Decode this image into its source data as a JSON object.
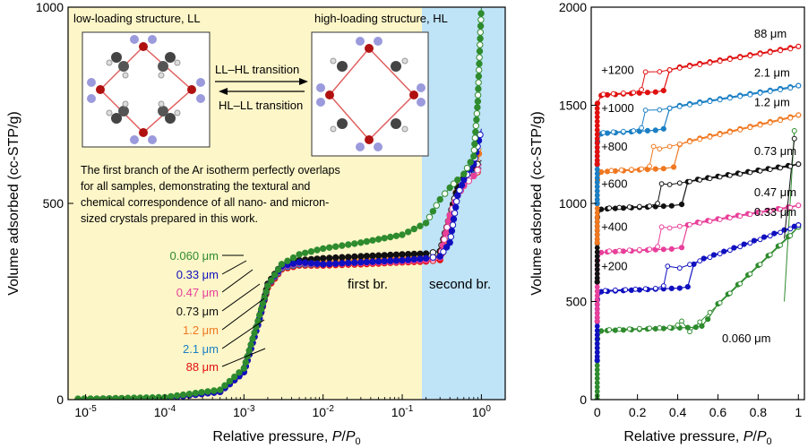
{
  "chart_data": [
    {
      "type": "scatter",
      "xscale": "log",
      "xlim": [
        6e-06,
        2
      ],
      "ylim": [
        0,
        1000
      ],
      "xlabel": "Relative pressure, P/P0",
      "ylabel": "Volume adsorbed (cc-STP/g)",
      "x_ticks": [
        1e-05,
        0.0001,
        0.001,
        0.01,
        0.1,
        1
      ],
      "x_tick_labels": [
        "10^-5",
        "10^-4",
        "10^-3",
        "10^-2",
        "10^-1",
        "10^0"
      ],
      "y_ticks": [
        0,
        500,
        1000
      ],
      "y_tick_labels": [
        "0",
        "500",
        "1000"
      ],
      "regions": [
        {
          "label": "first br.",
          "x_range": [
            6e-06,
            0.18
          ],
          "color": "#fdf6c8"
        },
        {
          "label": "second br.",
          "x_range": [
            0.18,
            2
          ],
          "color": "#bfe3f7"
        }
      ],
      "annotations": {
        "ll_label": "low-loading structure, LL",
        "hl_label": "high-loading structure, HL",
        "arrow_forward": "LL–HL transition",
        "arrow_back": "HL–LL transition",
        "note": [
          "The first branch of the Ar isotherm perfectly overlaps",
          "for all samples, demonstrating the textural and",
          "chemical correspondence of all nano- and micron-",
          "sized crystals prepared in this work."
        ]
      },
      "series": [
        {
          "name": "0.060 μm",
          "color": "#2e8b2e",
          "x": [
            8e-06,
            2e-05,
            0.0001,
            0.0005,
            0.001,
            0.0015,
            0.002,
            0.003,
            0.005,
            0.01,
            0.03,
            0.1,
            0.2,
            0.3,
            0.4,
            0.5,
            0.6,
            0.8,
            0.9,
            1.0
          ],
          "y": [
            2,
            3,
            6,
            25,
            80,
            200,
            290,
            345,
            370,
            385,
            400,
            420,
            450,
            510,
            540,
            560,
            575,
            620,
            760,
            1000
          ]
        },
        {
          "name": "0.33 μm",
          "color": "#1010c0",
          "x": [
            8e-06,
            0.0001,
            0.0005,
            0.001,
            0.0015,
            0.002,
            0.003,
            0.005,
            0.01,
            0.03,
            0.1,
            0.2,
            0.3,
            0.4,
            0.5,
            0.6,
            0.8,
            1.0
          ],
          "y": [
            1,
            4,
            20,
            70,
            190,
            290,
            340,
            350,
            345,
            350,
            355,
            360,
            365,
            400,
            520,
            560,
            600,
            690
          ]
        },
        {
          "name": "0.47 μm",
          "color": "#e8409a",
          "x": [
            8e-06,
            0.0001,
            0.0005,
            0.001,
            0.0015,
            0.002,
            0.003,
            0.005,
            0.01,
            0.03,
            0.1,
            0.2,
            0.3,
            0.4,
            0.5,
            0.6,
            0.8,
            1.0
          ],
          "y": [
            1,
            4,
            20,
            70,
            190,
            290,
            338,
            348,
            345,
            348,
            352,
            356,
            362,
            470,
            520,
            545,
            570,
            600
          ]
        },
        {
          "name": "0.73 μm",
          "color": "#111111",
          "x": [
            8e-06,
            0.0001,
            0.0005,
            0.001,
            0.0015,
            0.002,
            0.003,
            0.005,
            0.01,
            0.03,
            0.1,
            0.2,
            0.3,
            0.4,
            0.5,
            0.6,
            0.8,
            1.0
          ],
          "y": [
            1,
            4,
            20,
            70,
            190,
            295,
            345,
            355,
            360,
            365,
            370,
            372,
            378,
            470,
            540,
            565,
            590,
            610
          ]
        },
        {
          "name": "1.2 μm",
          "color": "#f07820",
          "x": [
            8e-06,
            0.0001,
            0.0005,
            0.001,
            0.0015,
            0.002,
            0.003,
            0.005,
            0.01,
            0.03,
            0.1,
            0.2,
            0.3,
            0.4,
            0.5,
            0.6,
            0.8,
            1.0
          ],
          "y": [
            1,
            4,
            20,
            70,
            190,
            290,
            340,
            350,
            350,
            355,
            360,
            362,
            368,
            460,
            545,
            570,
            600,
            640
          ]
        },
        {
          "name": "2.1 μm",
          "color": "#1a7fc4",
          "x": [
            8e-06,
            0.0001,
            0.0005,
            0.001,
            0.0015,
            0.002,
            0.003,
            0.005,
            0.01,
            0.03,
            0.1,
            0.2,
            0.3,
            0.4,
            0.5,
            0.6,
            0.8,
            1.0
          ],
          "y": [
            1,
            4,
            20,
            70,
            190,
            290,
            335,
            345,
            345,
            350,
            355,
            358,
            363,
            455,
            520,
            550,
            580,
            600
          ]
        },
        {
          "name": "88 μm",
          "color": "#e01010",
          "x": [
            8e-06,
            0.0001,
            0.0005,
            0.001,
            0.0015,
            0.002,
            0.003,
            0.005,
            0.01,
            0.03,
            0.1,
            0.2,
            0.3,
            0.4,
            0.5,
            0.6,
            0.8,
            1.0
          ],
          "y": [
            1,
            4,
            20,
            70,
            190,
            285,
            332,
            342,
            342,
            345,
            350,
            352,
            356,
            450,
            520,
            545,
            570,
            590
          ]
        }
      ]
    },
    {
      "type": "line",
      "xlim": [
        -0.03,
        1.03
      ],
      "ylim": [
        0,
        2000
      ],
      "xlabel": "Relative pressure, P/P0",
      "ylabel": "Volume adsorbed (cc-STP/g)",
      "x_ticks": [
        0,
        0.2,
        0.4,
        0.6,
        0.8,
        1
      ],
      "x_tick_labels": [
        "0",
        "0.2",
        "0.4",
        "0.6",
        "0.8",
        "1"
      ],
      "y_ticks": [
        0,
        500,
        1000,
        1500,
        2000
      ],
      "y_tick_labels": [
        "0",
        "500",
        "1000",
        "1500",
        "2000"
      ],
      "series": [
        {
          "name": "0.060 μm",
          "offset_label": "",
          "color": "#2e8b2e",
          "offset": 0,
          "step": 0.52,
          "step_height": 60,
          "base": 350,
          "end": 880,
          "steep": 1370
        },
        {
          "name": "0.33 μm",
          "offset_label": "+200",
          "color": "#1010c0",
          "offset": 200,
          "step": 0.45,
          "step_height": 140,
          "base": 350,
          "end": 890,
          "steep": 0
        },
        {
          "name": "0.47 μm",
          "offset_label": "+400",
          "color": "#e8409a",
          "offset": 400,
          "step": 0.42,
          "step_height": 140,
          "base": 350,
          "end": 990,
          "steep": 0
        },
        {
          "name": "0.73 μm",
          "offset_label": "+600",
          "color": "#111111",
          "offset": 600,
          "step": 0.42,
          "step_height": 140,
          "base": 370,
          "end": 1200,
          "steep": 1330
        },
        {
          "name": "1.2 μm",
          "offset_label": "+800",
          "color": "#f07820",
          "offset": 800,
          "step": 0.38,
          "step_height": 140,
          "base": 360,
          "end": 1450,
          "steep": 0
        },
        {
          "name": "2.1 μm",
          "offset_label": "+1000",
          "color": "#1a7fc4",
          "offset": 1000,
          "step": 0.33,
          "step_height": 130,
          "base": 355,
          "end": 1600,
          "steep": 0
        },
        {
          "name": "88 μm",
          "offset_label": "+1200",
          "color": "#e01010",
          "offset": 1200,
          "step": 0.33,
          "step_height": 130,
          "base": 350,
          "end": 1800,
          "steep": 0
        }
      ]
    }
  ]
}
